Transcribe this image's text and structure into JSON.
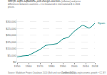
{
  "chart_data": {
    "type": "line",
    "title": "GDP per capita, 1950 to 2018",
    "subtitle": "GDP per capita adjusted for price changes over time (inflation) and price differences between countries – it is measured in international-$ in 2011 prices.",
    "source": "Source: Maddison Project Database 2020 (Bolt and van Zanden, 2020)",
    "note": "OurWorldInData.org/economic-growth • CC BY",
    "x": [
      1950,
      1955,
      1960,
      1965,
      1970,
      1975,
      1980,
      1985,
      1990,
      1995,
      2000,
      2005,
      2007,
      2008,
      2010,
      2013,
      2015,
      2018
    ],
    "series": [
      {
        "name": "Spain",
        "color": "#00847e",
        "values": [
          3900,
          4700,
          5100,
          7300,
          9500,
          12500,
          13100,
          13800,
          17300,
          18600,
          23000,
          26000,
          27400,
          27300,
          26300,
          25200,
          26400,
          28900
        ]
      }
    ],
    "xlim": [
      1950,
      2018
    ],
    "xticks": [
      1950,
      1960,
      1970,
      1980,
      1990,
      2000,
      2010,
      2018
    ],
    "ylim": [
      0,
      32000
    ],
    "yticks": [
      {
        "value": 0,
        "label": "$0"
      },
      {
        "value": 5000,
        "label": "$5,000"
      },
      {
        "value": 10000,
        "label": "$10,000"
      },
      {
        "value": 15000,
        "label": "$15,000"
      },
      {
        "value": 20000,
        "label": "$20,000"
      },
      {
        "value": 25000,
        "label": "$25,000"
      },
      {
        "value": 30000,
        "label": "$30,000"
      }
    ],
    "grid": true
  }
}
